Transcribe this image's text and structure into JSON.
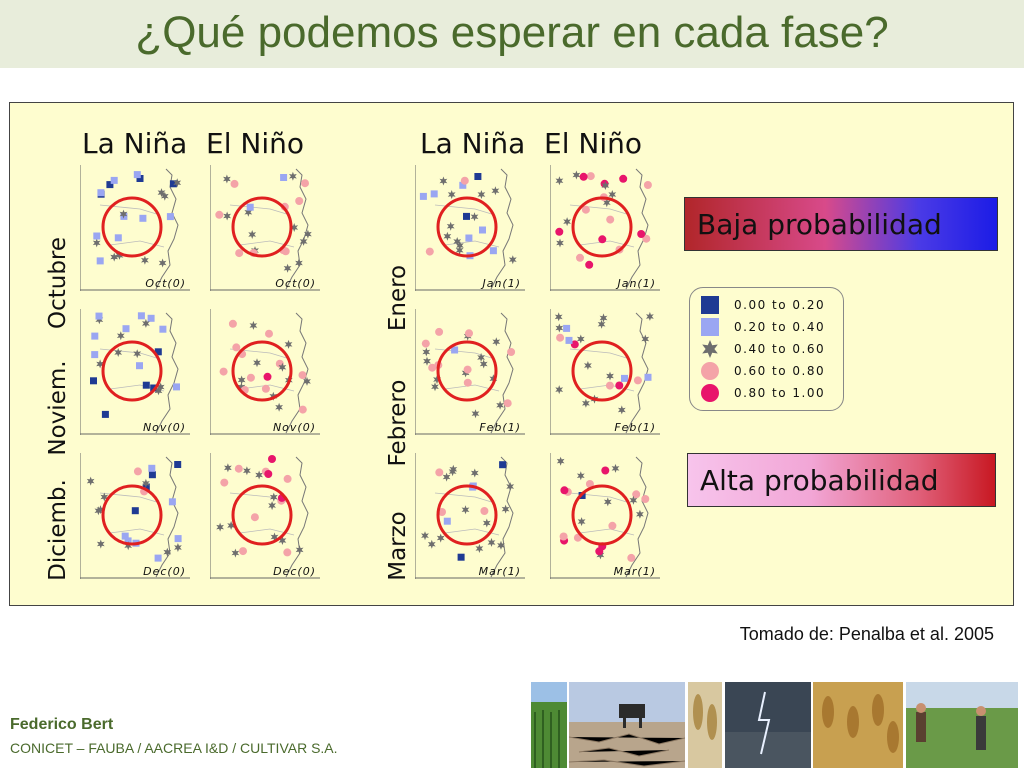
{
  "slide": {
    "title": "¿Qué podemos esperar en cada fase?",
    "source": "Tomado de: Penalba et al. 2005",
    "author": "Federico Bert",
    "affiliation": "CONICET – FAUBA / AACREA I&D / CULTIVAR S.A."
  },
  "panels": {
    "left": {
      "column_heads": [
        "La Niña",
        "El Niño"
      ],
      "row_labels": [
        "Octubre",
        "Noviem.",
        "Diciemb."
      ],
      "map_labels": [
        [
          "Oct(0)",
          "Oct(0)"
        ],
        [
          "Nov(0)",
          "Nov(0)"
        ],
        [
          "Dec(0)",
          "Dec(0)"
        ]
      ]
    },
    "right": {
      "column_heads": [
        "La Niña",
        "El Niño"
      ],
      "row_labels": [
        "Enero",
        "Febrero",
        "Marzo"
      ],
      "map_labels": [
        [
          "Jan(1)",
          "Jan(1)"
        ],
        [
          "Feb(1)",
          "Feb(1)"
        ],
        [
          "Mar(1)",
          "Mar(1)"
        ]
      ]
    }
  },
  "legend": {
    "low_box": "Baja probabilidad",
    "high_box": "Alta probabilidad",
    "items": [
      {
        "label": "0.00  to  0.20",
        "symbol": "square",
        "color": "#1f3a93"
      },
      {
        "label": "0.20  to  0.40",
        "symbol": "square",
        "color": "#9aa6f2"
      },
      {
        "label": "0.40  to  0.60",
        "symbol": "star",
        "color": "#6e6e6e"
      },
      {
        "label": "0.60  to  0.80",
        "symbol": "circle",
        "color": "#f4a3a8"
      },
      {
        "label": "0.80  to  1.00",
        "symbol": "circle",
        "color": "#e8156b"
      }
    ]
  },
  "colors": {
    "title": "#4a6a2c",
    "figure_bg": "#fefdcf",
    "highlight_circle": "#e02020",
    "low_gradient": [
      "#b1262a",
      "#1c1ce6"
    ],
    "high_gradient": [
      "#f7c4ec",
      "#c81822"
    ]
  }
}
